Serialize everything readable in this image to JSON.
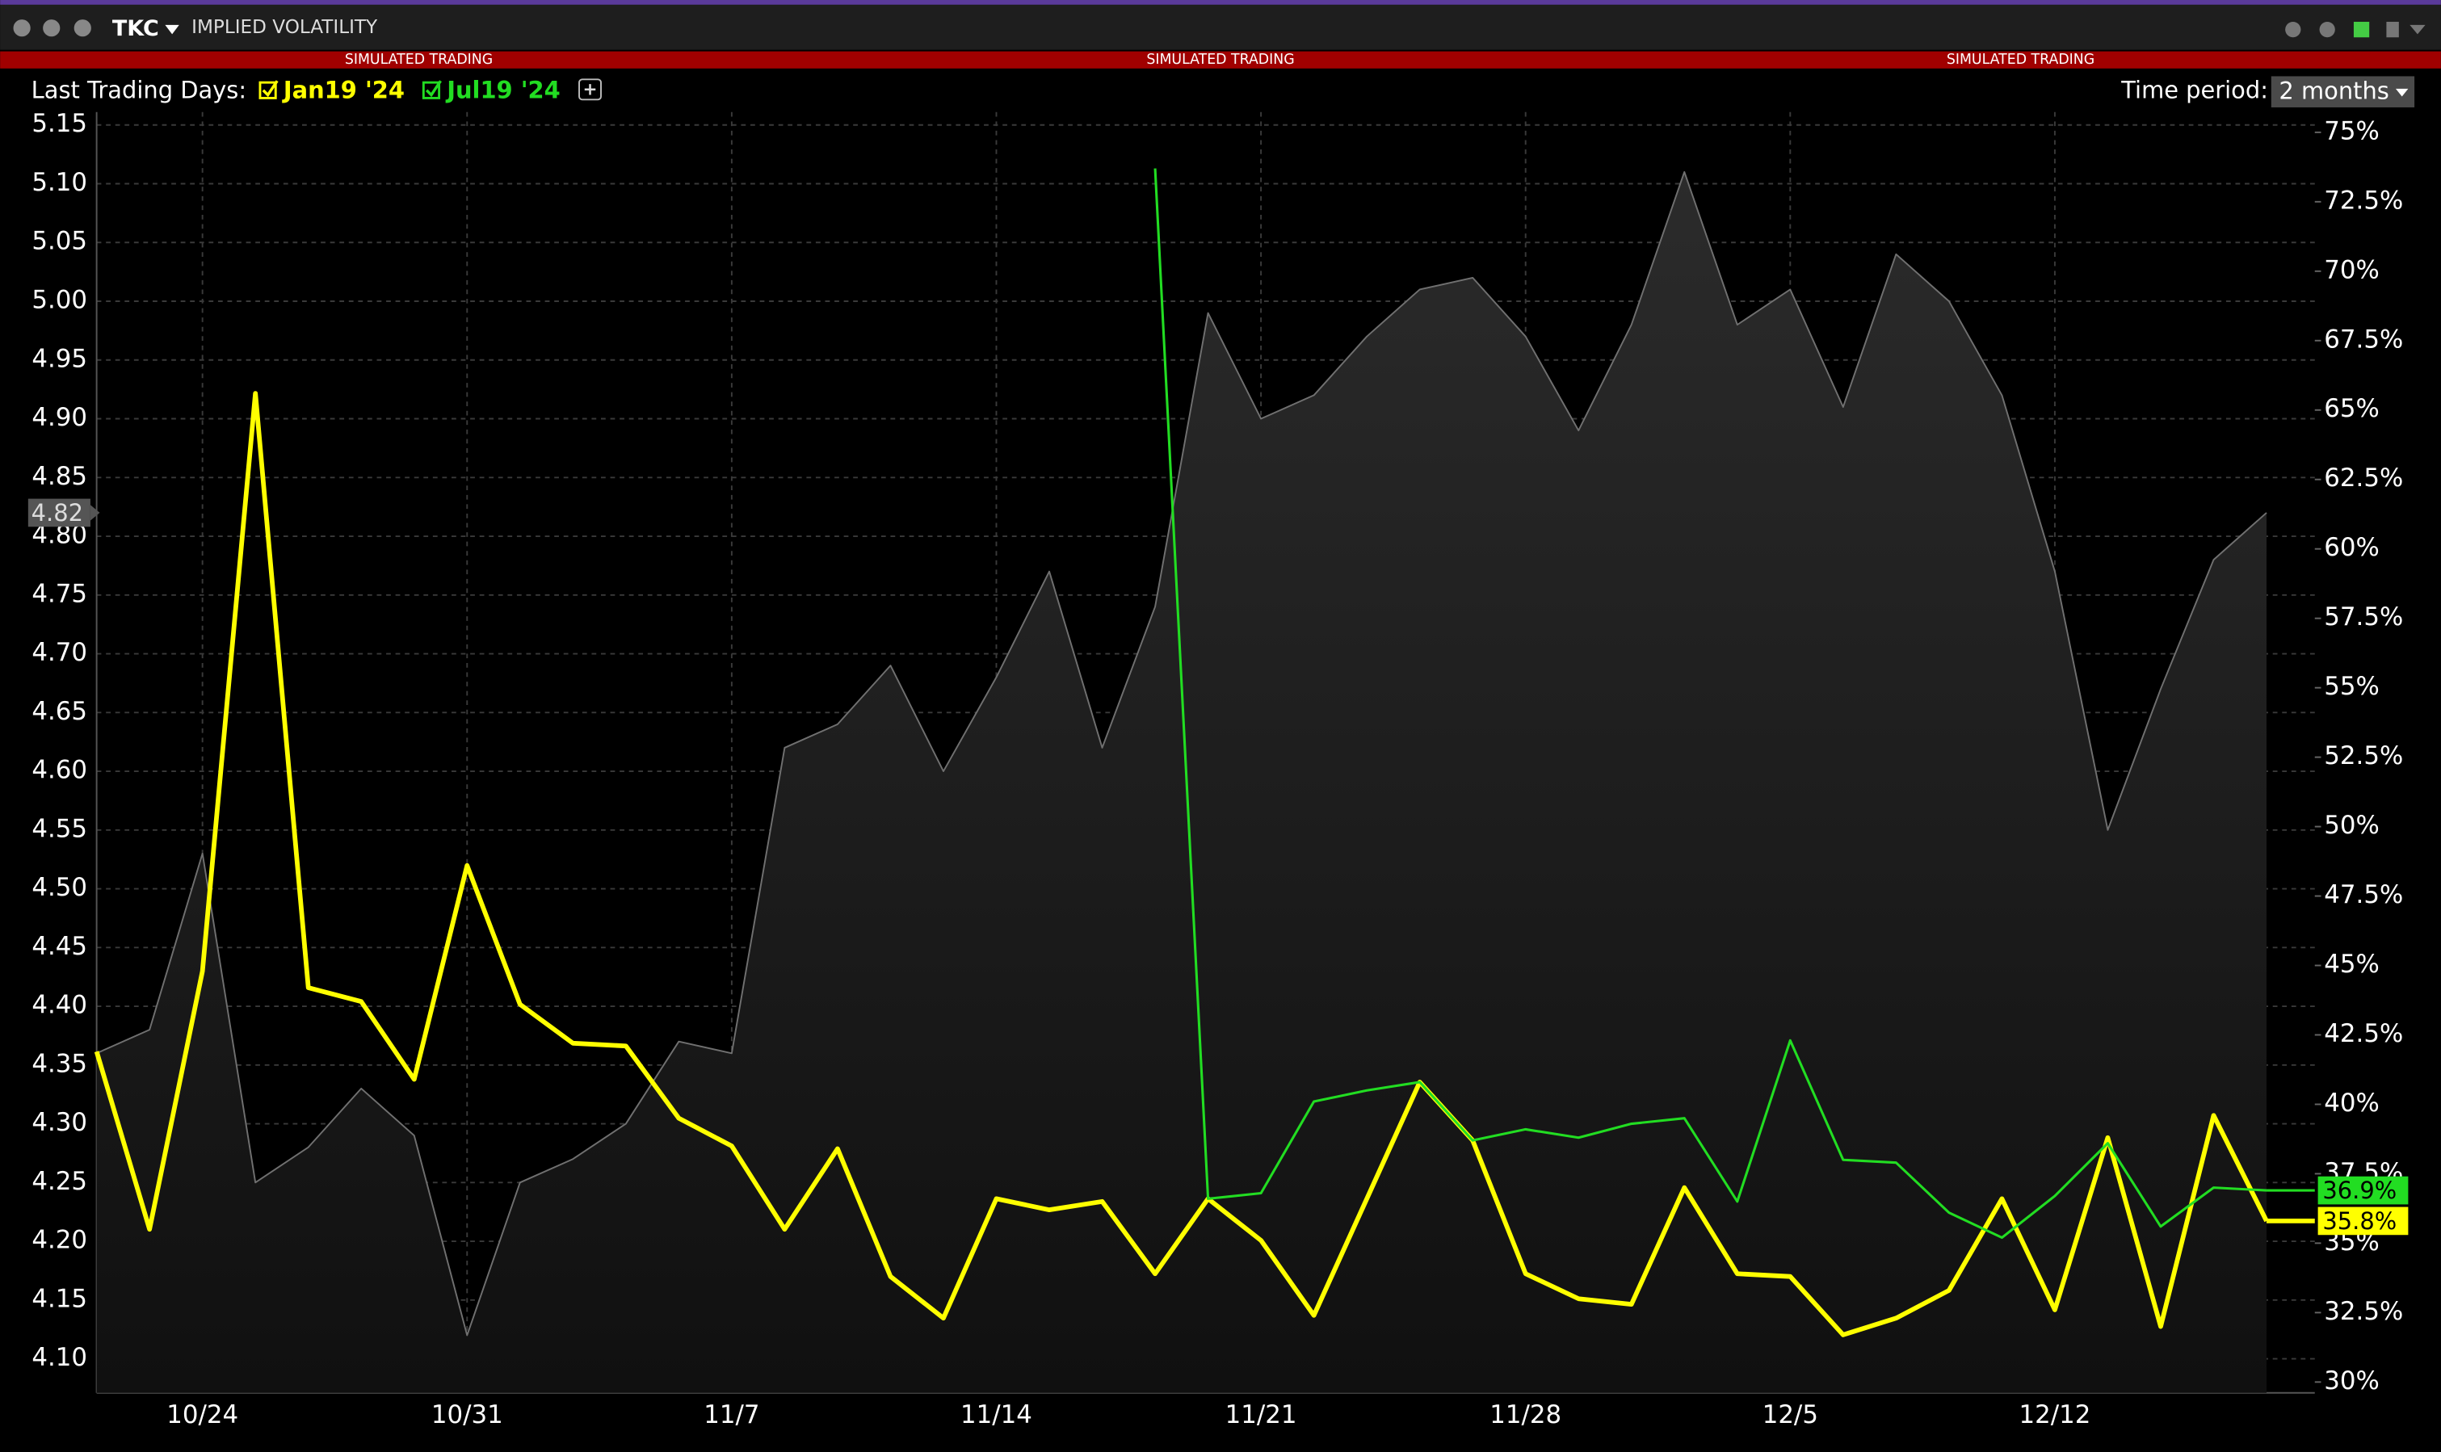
{
  "window": {
    "symbol": "TKC",
    "title": "IMPLIED VOLATILITY",
    "banner": [
      "SIMULATED TRADING",
      "SIMULATED TRADING",
      "SIMULATED TRADING"
    ],
    "controls": {
      "last_trading_days": "Last Trading Days:",
      "time_period": "Time period:",
      "time_period_value": "2 months"
    }
  },
  "chart_data": {
    "type": "line",
    "categories": [
      null,
      null,
      "10/24",
      null,
      null,
      null,
      null,
      "10/31",
      null,
      null,
      null,
      null,
      "11/7",
      null,
      null,
      null,
      null,
      "11/14",
      null,
      null,
      null,
      null,
      "11/21",
      null,
      null,
      null,
      null,
      "11/28",
      null,
      null,
      null,
      null,
      "12/5",
      null,
      null,
      null,
      null,
      "12/12",
      null,
      null,
      null,
      null
    ],
    "ylim": [
      4.071,
      5.161
    ],
    "yticks": [
      {
        "value": 4.1,
        "label": "4.10"
      },
      {
        "value": 4.15,
        "label": "4.15"
      },
      {
        "value": 4.2,
        "label": "4.20"
      },
      {
        "value": 4.25,
        "label": "4.25"
      },
      {
        "value": 4.3,
        "label": "4.30"
      },
      {
        "value": 4.35,
        "label": "4.35"
      },
      {
        "value": 4.4,
        "label": "4.40"
      },
      {
        "value": 4.45,
        "label": "4.45"
      },
      {
        "value": 4.5,
        "label": "4.50"
      },
      {
        "value": 4.55,
        "label": "4.55"
      },
      {
        "value": 4.6,
        "label": "4.60"
      },
      {
        "value": 4.65,
        "label": "4.65"
      },
      {
        "value": 4.7,
        "label": "4.70"
      },
      {
        "value": 4.75,
        "label": "4.75"
      },
      {
        "value": 4.8,
        "label": "4.80"
      },
      {
        "value": 4.85,
        "label": "4.85"
      },
      {
        "value": 4.9,
        "label": "4.90"
      },
      {
        "value": 4.95,
        "label": "4.95"
      },
      {
        "value": 5.0,
        "label": "5.00"
      },
      {
        "value": 5.05,
        "label": "5.05"
      },
      {
        "value": 5.1,
        "label": "5.10"
      },
      {
        "value": 5.15,
        "label": "5.15"
      }
    ],
    "y2lim": [
      29.61,
      75.73
    ],
    "y2ticks": [
      {
        "value": 30,
        "label": "30%"
      },
      {
        "value": 32.5,
        "label": "32.5%"
      },
      {
        "value": 35,
        "label": "35%"
      },
      {
        "value": 37.5,
        "label": "37.5%"
      },
      {
        "value": 40,
        "label": "40%"
      },
      {
        "value": 42.5,
        "label": "42.5%"
      },
      {
        "value": 45,
        "label": "45%"
      },
      {
        "value": 47.5,
        "label": "47.5%"
      },
      {
        "value": 50,
        "label": "50%"
      },
      {
        "value": 52.5,
        "label": "52.5%"
      },
      {
        "value": 55,
        "label": "55%"
      },
      {
        "value": 57.5,
        "label": "57.5%"
      },
      {
        "value": 60,
        "label": "60%"
      },
      {
        "value": 62.5,
        "label": "62.5%"
      },
      {
        "value": 65,
        "label": "65%"
      },
      {
        "value": 67.5,
        "label": "67.5%"
      },
      {
        "value": 70,
        "label": "70%"
      },
      {
        "value": 72.5,
        "label": "72.5%"
      },
      {
        "value": 75,
        "label": "75%"
      }
    ],
    "grid": true,
    "series": [
      {
        "color": "#707070",
        "area": true,
        "values": [
          4.36,
          4.38,
          4.53,
          4.25,
          4.28,
          4.33,
          4.29,
          4.12,
          4.25,
          4.27,
          4.3,
          4.37,
          4.36,
          4.62,
          4.64,
          4.69,
          4.6,
          4.68,
          4.77,
          4.62,
          4.74,
          4.99,
          4.9,
          4.92,
          4.97,
          5.01,
          5.02,
          4.97,
          4.89,
          4.98,
          5.11,
          4.98,
          5.01,
          4.91,
          5.04,
          5.0,
          4.92,
          4.77,
          4.55,
          4.67,
          4.78,
          4.82
        ],
        "value_labels": [
          null,
          null,
          null,
          null,
          null,
          null,
          null,
          null,
          null,
          null,
          null,
          null,
          null,
          null,
          null,
          null,
          null,
          null,
          null,
          null,
          null,
          null,
          null,
          null,
          null,
          null,
          null,
          null,
          null,
          null,
          null,
          null,
          null,
          null,
          null,
          null,
          null,
          null,
          null,
          null,
          null,
          "4.82"
        ]
      },
      {
        "name": "Jan19 '24",
        "color": "#ffff00",
        "axis": "y2",
        "values": [
          41.9,
          35.5,
          44.8,
          65.6,
          44.2,
          43.7,
          40.9,
          48.6,
          43.6,
          42.2,
          42.1,
          39.5,
          38.5,
          35.5,
          38.4,
          33.8,
          32.3,
          36.6,
          36.2,
          36.5,
          33.9,
          36.6,
          35.1,
          32.4,
          36.6,
          40.8,
          38.7,
          33.9,
          33.0,
          32.8,
          37.0,
          33.9,
          33.8,
          31.7,
          32.3,
          33.3,
          36.6,
          32.6,
          38.8,
          32.0,
          39.6,
          35.8
        ],
        "value_labels": [
          null,
          null,
          null,
          null,
          null,
          null,
          null,
          null,
          null,
          null,
          null,
          null,
          null,
          null,
          null,
          null,
          null,
          null,
          null,
          null,
          null,
          null,
          null,
          null,
          null,
          null,
          null,
          null,
          null,
          null,
          null,
          null,
          null,
          null,
          null,
          null,
          null,
          null,
          null,
          null,
          null,
          "35.8%"
        ]
      },
      {
        "name": "Jul19 '24",
        "color": "#22dd22",
        "axis": "y2",
        "values": [
          null,
          null,
          null,
          null,
          null,
          null,
          null,
          null,
          null,
          null,
          null,
          null,
          null,
          null,
          null,
          null,
          null,
          null,
          null,
          null,
          73.7,
          36.6,
          36.8,
          40.1,
          40.5,
          40.8,
          38.7,
          39.1,
          38.8,
          39.3,
          39.5,
          36.5,
          42.3,
          38.0,
          37.9,
          36.1,
          35.2,
          36.7,
          38.6,
          35.6,
          37.0,
          36.9
        ],
        "value_labels": [
          null,
          null,
          null,
          null,
          null,
          null,
          null,
          null,
          null,
          null,
          null,
          null,
          null,
          null,
          null,
          null,
          null,
          null,
          null,
          null,
          null,
          null,
          null,
          null,
          null,
          null,
          null,
          null,
          null,
          null,
          null,
          null,
          null,
          null,
          null,
          null,
          null,
          null,
          null,
          null,
          null,
          "36.9%"
        ]
      }
    ]
  }
}
